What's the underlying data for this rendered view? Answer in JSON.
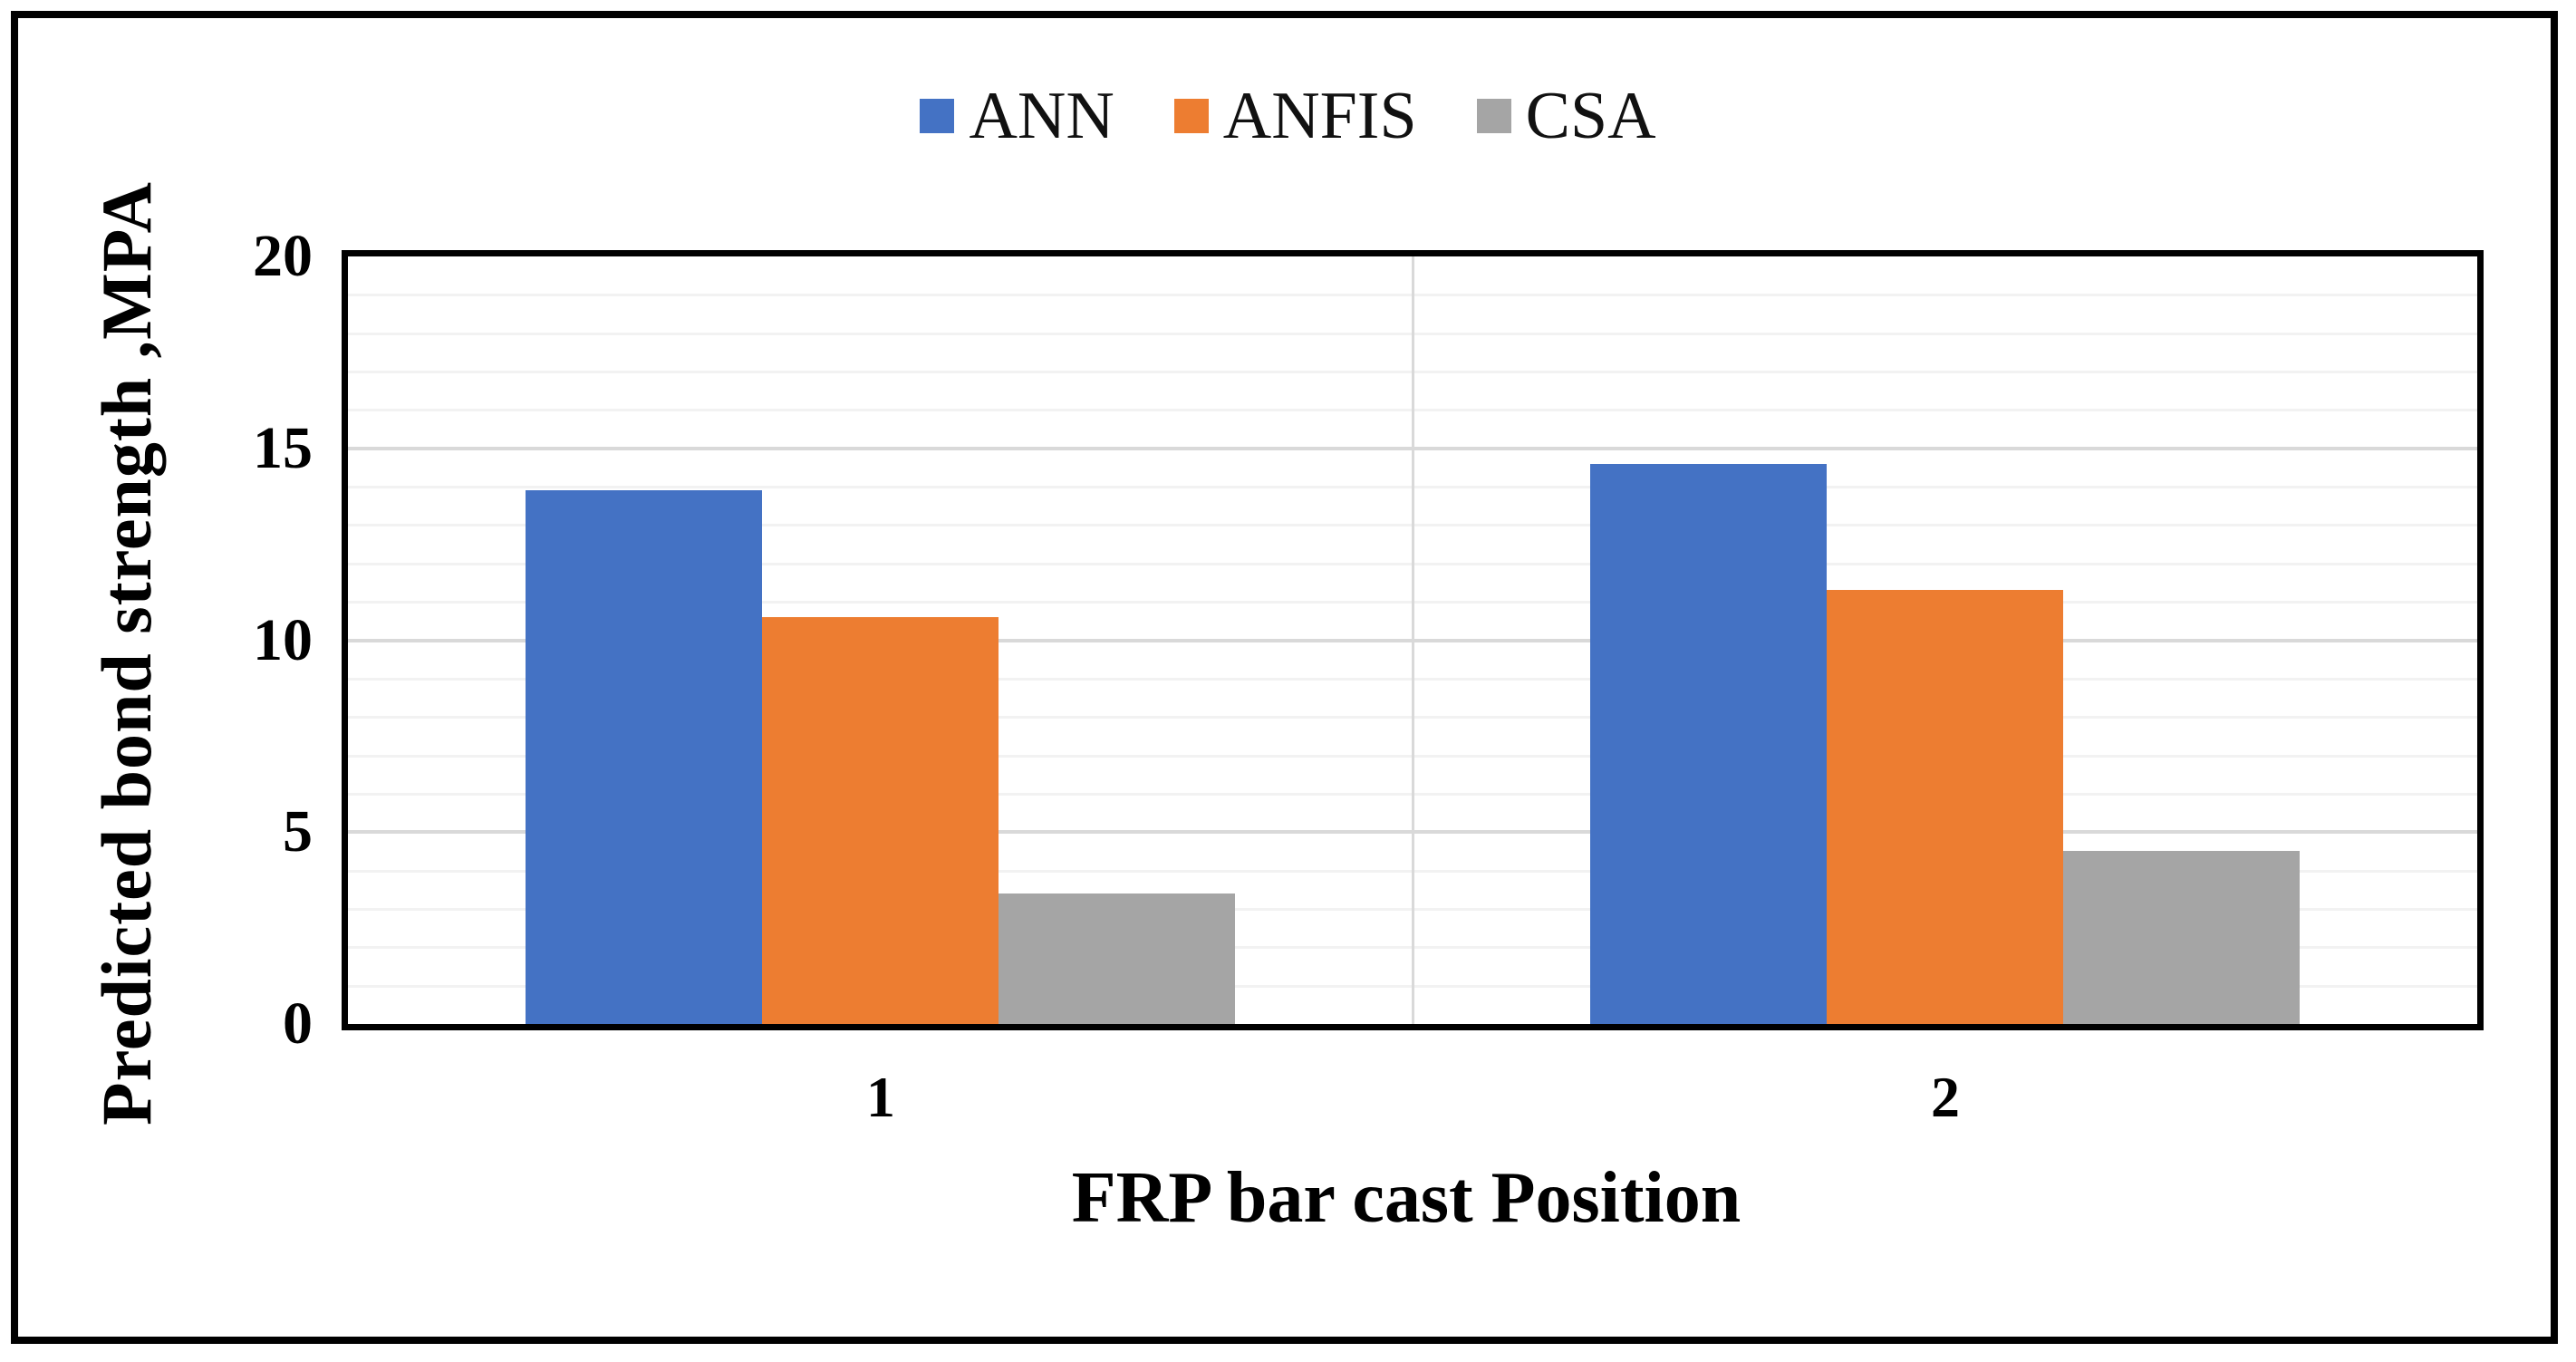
{
  "figure": {
    "background_color": "#FFFFFF",
    "border_color": "#000000"
  },
  "legend": {
    "position": "top-center",
    "items": [
      {
        "label": "ANN",
        "color": "#4472C4"
      },
      {
        "label": "ANFIS",
        "color": "#ED7D31"
      },
      {
        "label": "CSA",
        "color": "#A5A5A5"
      }
    ]
  },
  "chart_data": {
    "type": "bar",
    "title": "",
    "xlabel": "FRP bar cast Position",
    "ylabel": "Predicted bond strength ,MPA",
    "categories": [
      "1",
      "2"
    ],
    "series": [
      {
        "name": "ANN",
        "color": "#4472C4",
        "values": [
          13.9,
          14.6
        ]
      },
      {
        "name": "ANFIS",
        "color": "#ED7D31",
        "values": [
          10.6,
          11.3
        ]
      },
      {
        "name": "CSA",
        "color": "#A5A5A5",
        "values": [
          3.4,
          4.5
        ]
      }
    ],
    "ylim": [
      0,
      20
    ],
    "yticks": [
      0,
      5,
      10,
      15,
      20
    ],
    "grid": {
      "minor_step": 1,
      "major_step": 5,
      "minor_color": "#F2F2F2",
      "major_color": "#D9D9D9",
      "vertical_divider_color": "#D9D9D9"
    },
    "legend_position": "top-center"
  }
}
